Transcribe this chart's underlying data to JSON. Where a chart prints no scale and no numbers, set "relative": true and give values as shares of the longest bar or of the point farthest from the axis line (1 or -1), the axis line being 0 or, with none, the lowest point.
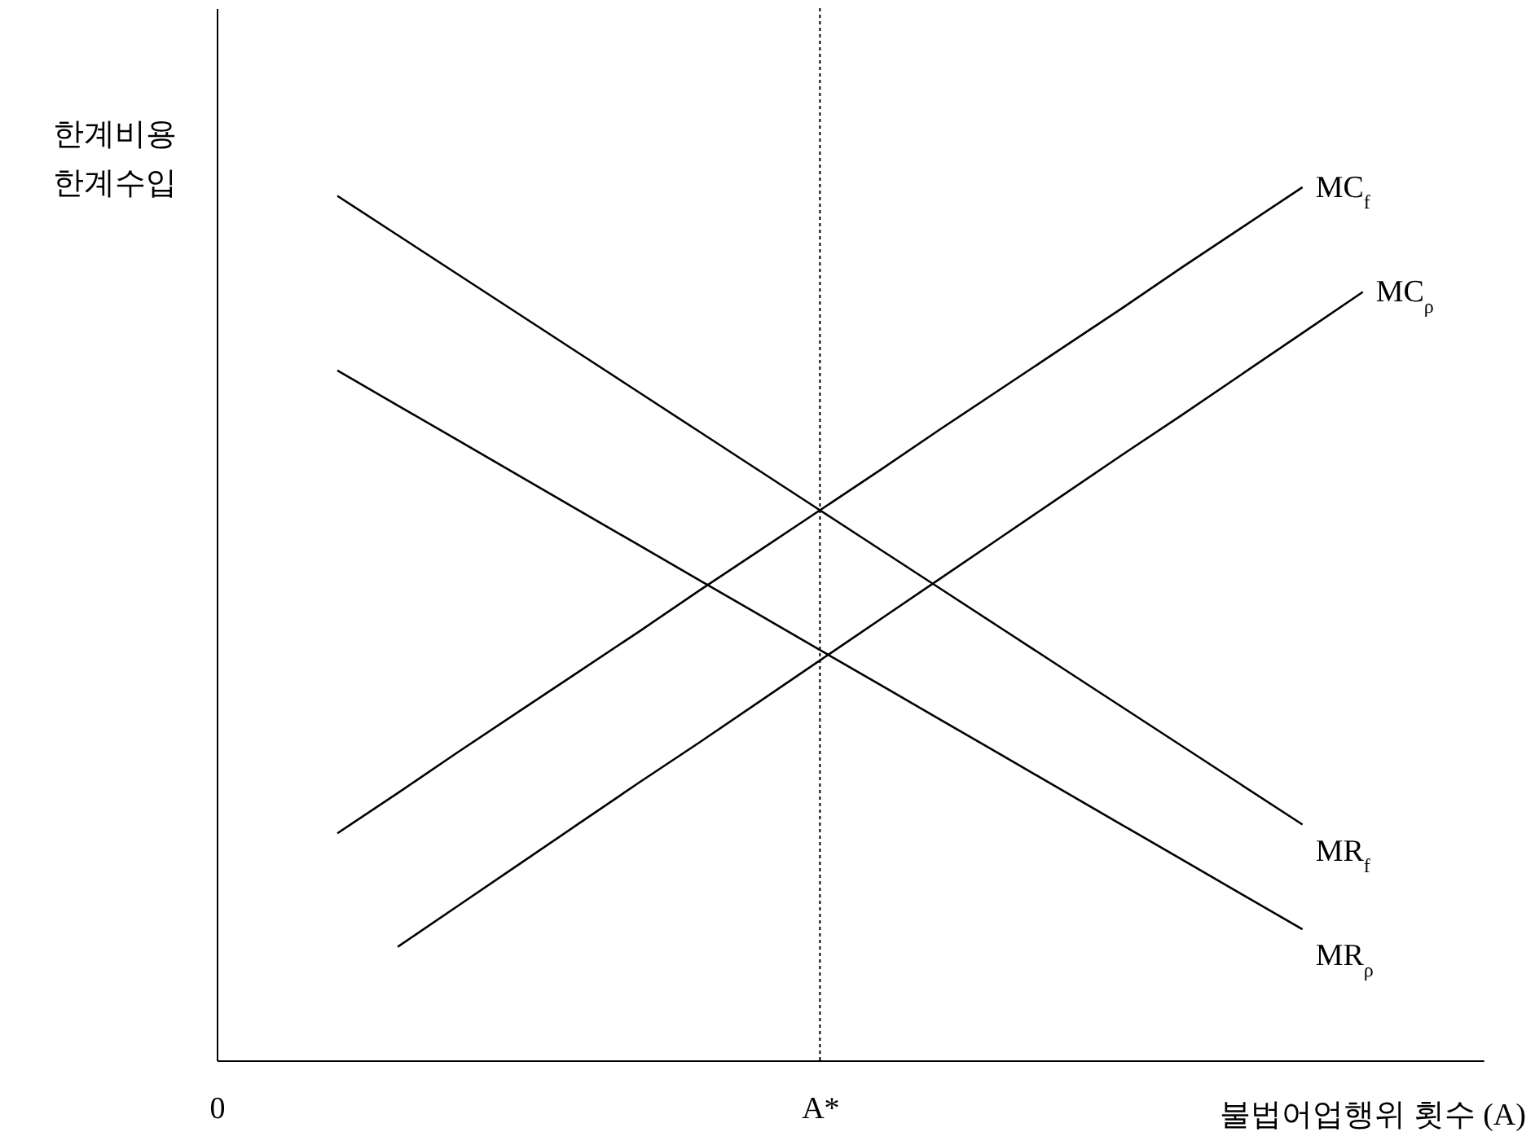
{
  "chart_data": {
    "type": "line",
    "relative": true,
    "xlabel": "불법어업행위 횟수 (A)",
    "ylabel": "한계비용\n한계수입",
    "categories": [
      "0",
      null,
      null,
      null,
      null,
      null,
      null,
      null,
      null,
      null,
      "A*",
      null,
      null,
      null,
      null,
      null,
      null,
      null,
      null,
      null,
      null,
      null
    ],
    "tick_labels": "x",
    "grid": false,
    "marker": "none",
    "line_style": "solid",
    "series": [
      {
        "name": "MC$_{f}$",
        "color": "#000000",
        "values": [
          null,
          null,
          0.26,
          0.306,
          0.353,
          0.399,
          0.445,
          0.491,
          0.538,
          0.584,
          0.63,
          0.676,
          0.723,
          0.769,
          0.815,
          0.861,
          0.908,
          0.954,
          1.0,
          null,
          null,
          null
        ]
      },
      {
        "name": "MC$_{ρ}$",
        "color": "#000000",
        "values": [
          null,
          null,
          null,
          0.13,
          0.177,
          0.224,
          0.271,
          0.318,
          0.364,
          0.411,
          0.458,
          0.505,
          0.552,
          0.599,
          0.646,
          0.693,
          0.739,
          0.786,
          0.833,
          0.88,
          null,
          null
        ]
      },
      {
        "name": "MR$_{f}$",
        "color": "#000000",
        "values": [
          null,
          null,
          0.99,
          0.945,
          0.9,
          0.855,
          0.81,
          0.765,
          0.72,
          0.675,
          0.63,
          0.585,
          0.54,
          0.495,
          0.45,
          0.405,
          0.36,
          0.315,
          0.27,
          null,
          null,
          null
        ]
      },
      {
        "name": "MR$_{ρ}$",
        "color": "#000000",
        "values": [
          null,
          null,
          0.79,
          0.75,
          0.71,
          0.67,
          0.63,
          0.59,
          0.55,
          0.51,
          0.47,
          0.43,
          0.39,
          0.35,
          0.31,
          0.27,
          0.23,
          0.19,
          0.15,
          null,
          null,
          null
        ]
      }
    ],
    "ref_lines": [
      {
        "axis": "x",
        "value": "A*",
        "line_style": "dotted",
        "color": "#000000"
      }
    ]
  }
}
